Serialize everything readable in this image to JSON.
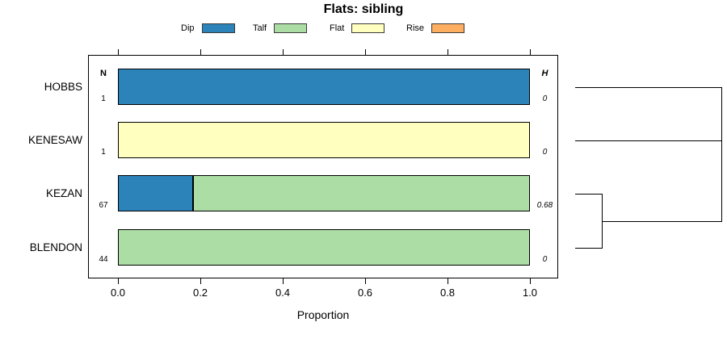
{
  "title": "Flats: sibling",
  "legend": {
    "position": "top",
    "items": [
      {
        "label": "Dip",
        "color": "#2B83BA"
      },
      {
        "label": "Talf",
        "color": "#ABDDA4"
      },
      {
        "label": "Flat",
        "color": "#FFFFBF"
      },
      {
        "label": "Rise",
        "color": "#FDAE61"
      }
    ]
  },
  "columns": {
    "n_header": "N",
    "h_header": "H"
  },
  "axis": {
    "xlabel": "Proportion",
    "tick_labels": [
      "0.0",
      "0.2",
      "0.4",
      "0.6",
      "0.8",
      "1.0"
    ]
  },
  "chart_data": {
    "type": "bar",
    "subtype": "horizontal-stacked-proportion",
    "title": "Flats: sibling",
    "xlabel": "Proportion",
    "xlim": [
      0,
      1
    ],
    "x_ticks": [
      0.0,
      0.2,
      0.4,
      0.6,
      0.8,
      1.0
    ],
    "grid": false,
    "legend_position": "top",
    "series_names": [
      "Dip",
      "Talf",
      "Flat",
      "Rise"
    ],
    "categories": [
      "HOBBS",
      "KENESAW",
      "KEZAN",
      "BLENDON"
    ],
    "rows": [
      {
        "category": "HOBBS",
        "n": "1",
        "h": "0",
        "segments": [
          {
            "series": "Dip",
            "value": 1.0
          }
        ]
      },
      {
        "category": "KENESAW",
        "n": "1",
        "h": "0",
        "segments": [
          {
            "series": "Flat",
            "value": 1.0
          }
        ]
      },
      {
        "category": "KEZAN",
        "n": "67",
        "h": "0.68",
        "segments": [
          {
            "series": "Dip",
            "value": 0.18
          },
          {
            "series": "Talf",
            "value": 0.82
          }
        ]
      },
      {
        "category": "BLENDON",
        "n": "44",
        "h": "0",
        "segments": [
          {
            "series": "Talf",
            "value": 1.0
          }
        ]
      }
    ],
    "dendrogram": {
      "side": "right",
      "structure": "((HOBBS,KENESAW),(KEZAN,BLENDON))",
      "merges": [
        {
          "members": [
            "KEZAN",
            "BLENDON"
          ],
          "relative_height": 0.18
        },
        {
          "members": [
            "HOBBS",
            "KENESAW",
            "(KEZAN,BLENDON)"
          ],
          "relative_height": 1.0
        }
      ]
    }
  }
}
